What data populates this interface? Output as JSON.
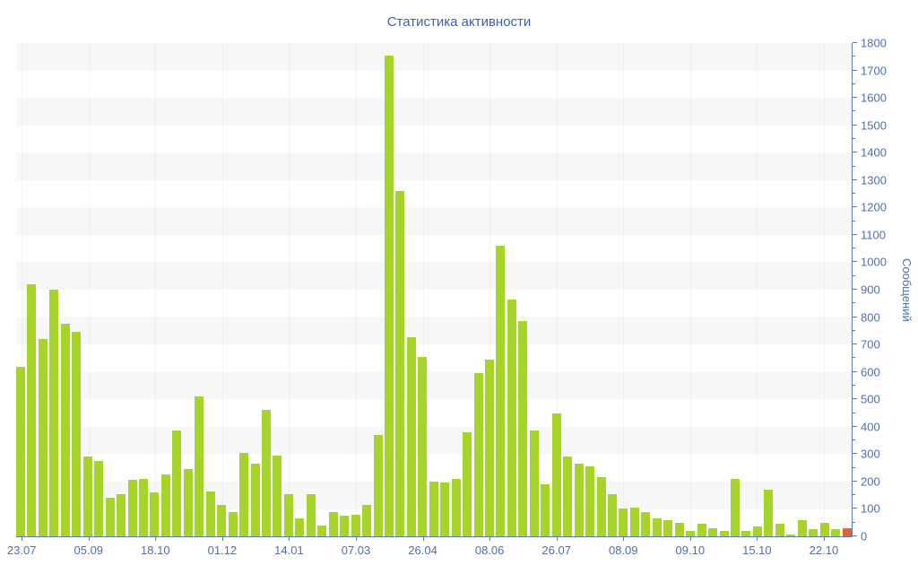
{
  "chart_data": {
    "type": "bar",
    "title": "Статистика активности",
    "ylabel": "Сообщений",
    "ylim": [
      0,
      1800
    ],
    "y_major_step": 100,
    "y_minor_step": 50,
    "grid": "horizontal-bands-alternating-100",
    "legend_position": "none",
    "bar_color": "#a6d42b",
    "highlight_color": "#e2632e",
    "highlight_index": 74,
    "band_color": "#f7f7f7",
    "axis_color": "#5b79b2",
    "tick_text_color": "#4e70ae",
    "title_color": "#3d63a5",
    "label_every": 6,
    "x_labels": [
      "23.07",
      "05.09",
      "18.10",
      "01.12",
      "14.01",
      "07.03",
      "26.04",
      "08.06",
      "26.07",
      "08.09",
      "09.10",
      "15.10",
      "22.10"
    ],
    "values": [
      620,
      920,
      720,
      900,
      775,
      745,
      290,
      275,
      140,
      155,
      205,
      210,
      160,
      225,
      385,
      245,
      510,
      165,
      115,
      90,
      305,
      265,
      460,
      295,
      155,
      65,
      155,
      40,
      90,
      75,
      80,
      115,
      370,
      1755,
      1260,
      725,
      655,
      200,
      195,
      210,
      380,
      595,
      645,
      1060,
      865,
      785,
      385,
      190,
      450,
      290,
      265,
      255,
      215,
      155,
      100,
      105,
      90,
      65,
      60,
      50,
      20,
      45,
      30,
      20,
      210,
      20,
      35,
      170,
      45,
      5,
      60,
      25,
      50,
      25,
      30
    ]
  }
}
